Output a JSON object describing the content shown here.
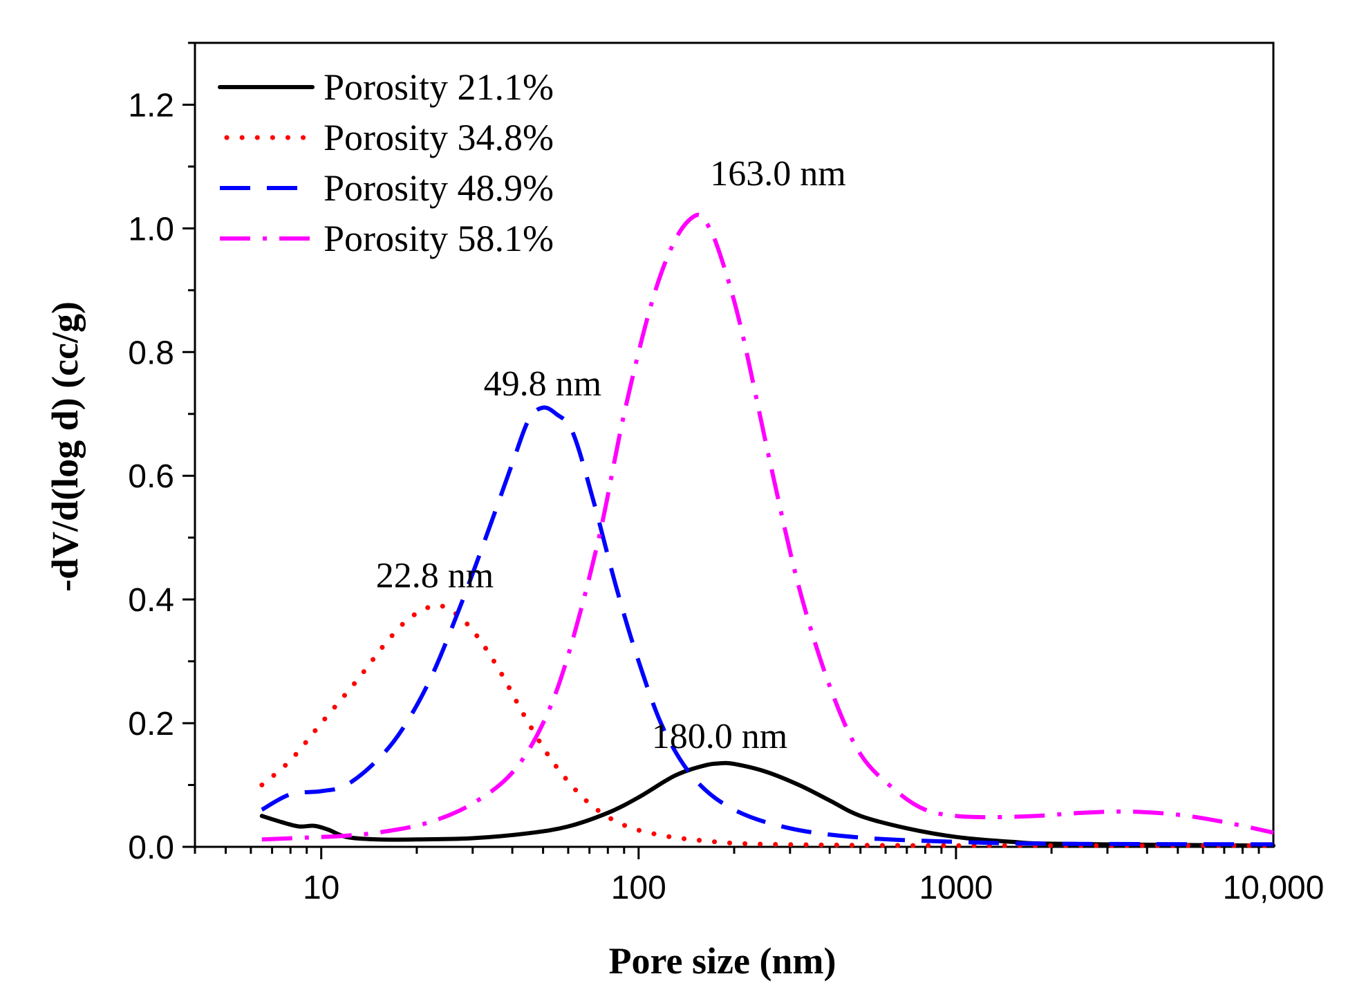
{
  "chart_data": {
    "type": "line",
    "title": "",
    "xlabel": "Pore size (nm)",
    "ylabel": "-dV/d(log d) (cc/g)",
    "xscale": "log",
    "xlim": [
      4,
      10000
    ],
    "ylim": [
      0,
      1.3
    ],
    "x_ticks": [
      {
        "value": 10,
        "label": "10"
      },
      {
        "value": 100,
        "label": "100"
      },
      {
        "value": 1000,
        "label": "1000"
      },
      {
        "value": 10000,
        "label": "10,000"
      }
    ],
    "y_ticks": [
      {
        "value": 0.0,
        "label": "0.0"
      },
      {
        "value": 0.2,
        "label": "0.2"
      },
      {
        "value": 0.4,
        "label": "0.4"
      },
      {
        "value": 0.6,
        "label": "0.6"
      },
      {
        "value": 0.8,
        "label": "0.8"
      },
      {
        "value": 1.0,
        "label": "1.0"
      },
      {
        "value": 1.2,
        "label": "1.2"
      }
    ],
    "legend_position": "top-left",
    "series": [
      {
        "name": "Porosity 21.1%",
        "color": "#000000",
        "style": "solid",
        "points": [
          [
            6.5,
            0.05
          ],
          [
            7.5,
            0.04
          ],
          [
            8.5,
            0.033
          ],
          [
            9.5,
            0.034
          ],
          [
            10.5,
            0.028
          ],
          [
            12,
            0.016
          ],
          [
            15,
            0.012
          ],
          [
            20,
            0.012
          ],
          [
            30,
            0.014
          ],
          [
            45,
            0.022
          ],
          [
            60,
            0.033
          ],
          [
            80,
            0.055
          ],
          [
            100,
            0.08
          ],
          [
            130,
            0.115
          ],
          [
            160,
            0.131
          ],
          [
            180,
            0.135
          ],
          [
            200,
            0.134
          ],
          [
            250,
            0.122
          ],
          [
            320,
            0.1
          ],
          [
            400,
            0.075
          ],
          [
            500,
            0.05
          ],
          [
            700,
            0.03
          ],
          [
            1000,
            0.016
          ],
          [
            1500,
            0.008
          ],
          [
            2000,
            0.005
          ],
          [
            5000,
            0.003
          ],
          [
            10000,
            0.002
          ]
        ]
      },
      {
        "name": "Porosity 34.8%",
        "color": "#ff0000",
        "style": "dotted",
        "points": [
          [
            6.5,
            0.1
          ],
          [
            8,
            0.14
          ],
          [
            10,
            0.2
          ],
          [
            13,
            0.27
          ],
          [
            16,
            0.33
          ],
          [
            19,
            0.37
          ],
          [
            22.8,
            0.39
          ],
          [
            26,
            0.38
          ],
          [
            30,
            0.35
          ],
          [
            36,
            0.29
          ],
          [
            45,
            0.2
          ],
          [
            55,
            0.13
          ],
          [
            70,
            0.07
          ],
          [
            90,
            0.035
          ],
          [
            120,
            0.018
          ],
          [
            160,
            0.01
          ],
          [
            220,
            0.005
          ],
          [
            400,
            0.003
          ],
          [
            1000,
            0.002
          ],
          [
            10000,
            0.002
          ]
        ]
      },
      {
        "name": "Porosity 48.9%",
        "color": "#0000ff",
        "style": "dashed",
        "points": [
          [
            6.5,
            0.06
          ],
          [
            8,
            0.085
          ],
          [
            10,
            0.09
          ],
          [
            12,
            0.1
          ],
          [
            15,
            0.14
          ],
          [
            18,
            0.19
          ],
          [
            22,
            0.27
          ],
          [
            27,
            0.38
          ],
          [
            33,
            0.5
          ],
          [
            40,
            0.62
          ],
          [
            45,
            0.69
          ],
          [
            49.8,
            0.71
          ],
          [
            55,
            0.7
          ],
          [
            62,
            0.67
          ],
          [
            72,
            0.56
          ],
          [
            85,
            0.42
          ],
          [
            100,
            0.3
          ],
          [
            120,
            0.19
          ],
          [
            150,
            0.11
          ],
          [
            200,
            0.06
          ],
          [
            300,
            0.03
          ],
          [
            500,
            0.015
          ],
          [
            1000,
            0.008
          ],
          [
            2000,
            0.005
          ],
          [
            10000,
            0.004
          ]
        ]
      },
      {
        "name": "Porosity 58.1%",
        "color": "#ff00ff",
        "style": "dashdot",
        "points": [
          [
            6.5,
            0.012
          ],
          [
            9,
            0.015
          ],
          [
            12,
            0.018
          ],
          [
            16,
            0.025
          ],
          [
            22,
            0.04
          ],
          [
            30,
            0.07
          ],
          [
            40,
            0.12
          ],
          [
            50,
            0.2
          ],
          [
            60,
            0.31
          ],
          [
            75,
            0.5
          ],
          [
            90,
            0.7
          ],
          [
            110,
            0.88
          ],
          [
            130,
            0.98
          ],
          [
            150,
            1.02
          ],
          [
            163,
            1.01
          ],
          [
            180,
            0.96
          ],
          [
            210,
            0.84
          ],
          [
            260,
            0.62
          ],
          [
            320,
            0.42
          ],
          [
            400,
            0.26
          ],
          [
            500,
            0.15
          ],
          [
            650,
            0.09
          ],
          [
            800,
            0.06
          ],
          [
            1000,
            0.05
          ],
          [
            1300,
            0.048
          ],
          [
            1800,
            0.05
          ],
          [
            2500,
            0.055
          ],
          [
            3500,
            0.057
          ],
          [
            5000,
            0.052
          ],
          [
            7000,
            0.04
          ],
          [
            10000,
            0.023
          ]
        ]
      }
    ],
    "annotations": [
      {
        "text": "163.0 nm",
        "x": 163,
        "y": 1.07
      },
      {
        "text": "49.8 nm",
        "x": 49.8,
        "y": 0.73
      },
      {
        "text": "22.8 nm",
        "x": 22.8,
        "y": 0.42
      },
      {
        "text": "180.0 nm",
        "x": 180,
        "y": 0.16
      }
    ]
  }
}
